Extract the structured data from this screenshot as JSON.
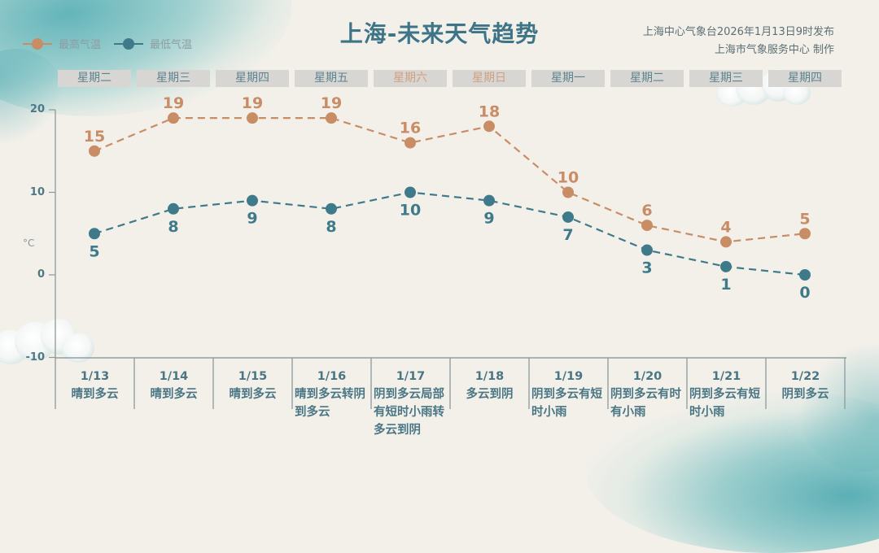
{
  "header": {
    "title": "上海-未来天气趋势",
    "publisher_line1": "上海中心气象台2026年1月13日9时发布",
    "publisher_line2": "上海市气象服务中心 制作"
  },
  "legend": {
    "high": {
      "label": "最高气温",
      "color": "#c98d66"
    },
    "low": {
      "label": "最低气温",
      "color": "#3f7a8a"
    }
  },
  "weekdays": [
    {
      "label": "星期二",
      "weekend": false
    },
    {
      "label": "星期三",
      "weekend": false
    },
    {
      "label": "星期四",
      "weekend": false
    },
    {
      "label": "星期五",
      "weekend": false
    },
    {
      "label": "星期六",
      "weekend": true
    },
    {
      "label": "星期日",
      "weekend": true
    },
    {
      "label": "星期一",
      "weekend": false
    },
    {
      "label": "星期二",
      "weekend": false
    },
    {
      "label": "星期三",
      "weekend": false
    },
    {
      "label": "星期四",
      "weekend": false
    }
  ],
  "y_axis": {
    "unit": "°C",
    "ticks": [
      "20",
      "10",
      "0",
      "-10"
    ]
  },
  "days": [
    {
      "date": "1/13",
      "weather": "晴到多云"
    },
    {
      "date": "1/14",
      "weather": "晴到多云"
    },
    {
      "date": "1/15",
      "weather": "晴到多云"
    },
    {
      "date": "1/16",
      "weather": "晴到多云转阴到多云"
    },
    {
      "date": "1/17",
      "weather": "阴到多云局部有短时小雨转多云到阴"
    },
    {
      "date": "1/18",
      "weather": "多云到阴"
    },
    {
      "date": "1/19",
      "weather": "阴到多云有短时小雨"
    },
    {
      "date": "1/20",
      "weather": "阴到多云有时有小雨"
    },
    {
      "date": "1/21",
      "weather": "阴到多云有短时小雨"
    },
    {
      "date": "1/22",
      "weather": "阴到多云"
    }
  ],
  "colors": {
    "high": "#c98d66",
    "low": "#3f7a8a",
    "title": "#3e7488",
    "weekday_text": "#5b8490",
    "weekend_text": "#d0a080",
    "axis": "#8a9a9c",
    "background": "#f3f0ea"
  },
  "chart_data": {
    "type": "line",
    "title": "上海-未来天气趋势",
    "xlabel": "",
    "ylabel": "°C",
    "categories": [
      "1/13",
      "1/14",
      "1/15",
      "1/16",
      "1/17",
      "1/18",
      "1/19",
      "1/20",
      "1/21",
      "1/22"
    ],
    "series": [
      {
        "name": "最高气温",
        "values": [
          15,
          19,
          19,
          19,
          16,
          18,
          10,
          6,
          4,
          5
        ],
        "color": "#c98d66",
        "style": "dashed"
      },
      {
        "name": "最低气温",
        "values": [
          5,
          8,
          9,
          8,
          10,
          9,
          7,
          3,
          1,
          0
        ],
        "color": "#3f7a8a",
        "style": "dashed"
      }
    ],
    "ylim": [
      -10,
      20
    ],
    "yticks": [
      -10,
      0,
      10,
      20
    ],
    "grid": false,
    "legend_position": "top-left",
    "data_labels": true
  }
}
